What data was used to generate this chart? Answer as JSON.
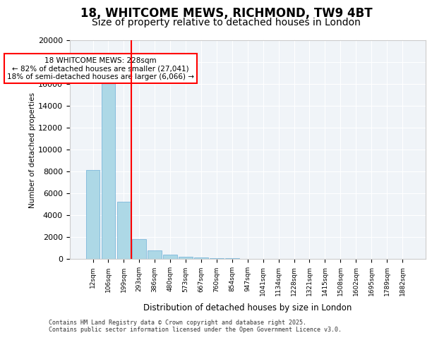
{
  "title": "18, WHITCOME MEWS, RICHMOND, TW9 4BT",
  "subtitle": "Size of property relative to detached houses in London",
  "xlabel": "Distribution of detached houses by size in London",
  "ylabel": "Number of detached properties",
  "categories": [
    "12sqm",
    "106sqm",
    "199sqm",
    "293sqm",
    "386sqm",
    "480sqm",
    "573sqm",
    "667sqm",
    "760sqm",
    "854sqm",
    "947sqm",
    "1041sqm",
    "1134sqm",
    "1228sqm",
    "1321sqm",
    "1415sqm",
    "1508sqm",
    "1602sqm",
    "1695sqm",
    "1789sqm",
    "1882sqm"
  ],
  "values": [
    8100,
    16500,
    5200,
    1800,
    750,
    400,
    200,
    120,
    70,
    40,
    25,
    15,
    10,
    8,
    6,
    5,
    4,
    3,
    3,
    2,
    2
  ],
  "bar_color": "#add8e6",
  "bar_edge_color": "#6baed6",
  "vline_x": 2,
  "vline_color": "red",
  "ylim": [
    0,
    20000
  ],
  "annotation_text": "18 WHITCOME MEWS: 228sqm\n← 82% of detached houses are smaller (27,041)\n18% of semi-detached houses are larger (6,066) →",
  "annotation_box_color": "red",
  "footer": "Contains HM Land Registry data © Crown copyright and database right 2025.\nContains public sector information licensed under the Open Government Licence v3.0.",
  "background_color": "#f0f4f8",
  "title_fontsize": 12,
  "subtitle_fontsize": 10,
  "yticks": [
    0,
    2000,
    4000,
    6000,
    8000,
    10000,
    12000,
    14000,
    16000,
    18000,
    20000
  ]
}
